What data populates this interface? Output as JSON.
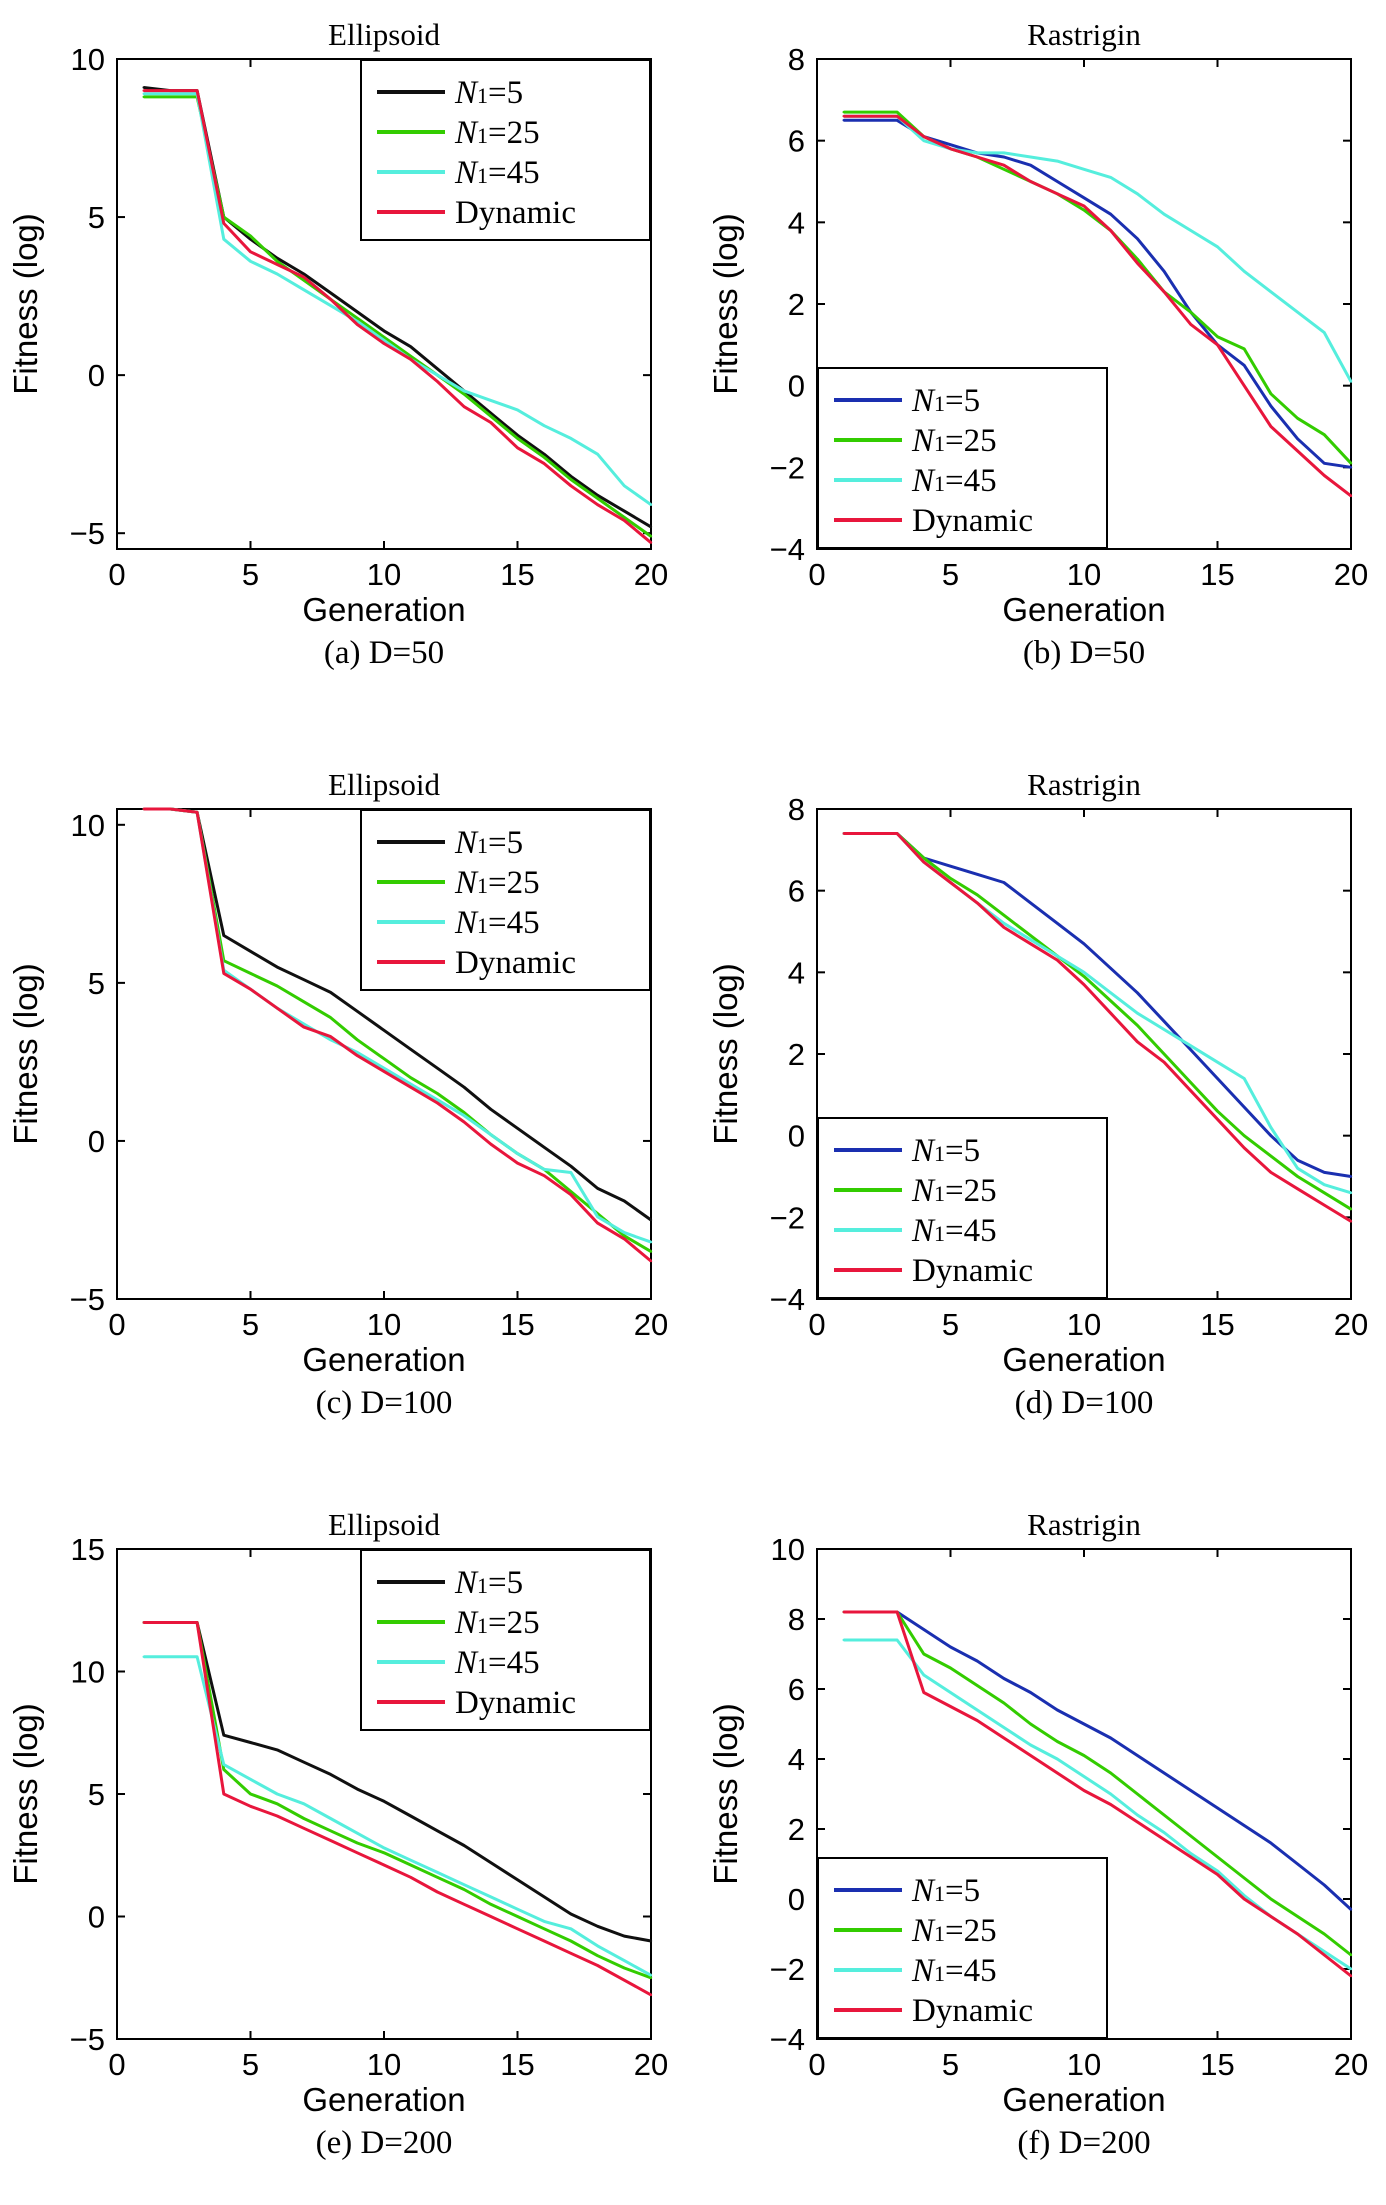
{
  "colors": {
    "N1=5 (Ellipsoid)": "#101010",
    "N1=5 (Rastrigin)": "#1a2fb0",
    "N1=25": "#33cc00",
    "N1=45": "#55eedd",
    "Dynamic": "#e8163c"
  },
  "chart_data": [
    {
      "type": "line",
      "title": "Ellipsoid",
      "caption": "(a) D=50",
      "xlabel": "Generation",
      "ylabel": "Fitness (log)",
      "xlim": [
        0,
        20
      ],
      "ylim": [
        -5.5,
        10
      ],
      "xticks": [
        0,
        5,
        10,
        15,
        20
      ],
      "yticks": [
        -5,
        0,
        5,
        10
      ],
      "legend": "top-right",
      "x": [
        1,
        2,
        3,
        4,
        5,
        6,
        7,
        8,
        9,
        10,
        11,
        12,
        13,
        14,
        15,
        16,
        17,
        18,
        19,
        20
      ],
      "series": [
        {
          "name": "N1=5",
          "color_key": "N1=5 (Ellipsoid)",
          "values": [
            9.1,
            9.0,
            9.0,
            5.0,
            4.3,
            3.7,
            3.2,
            2.6,
            2.0,
            1.4,
            0.9,
            0.2,
            -0.5,
            -1.2,
            -1.9,
            -2.5,
            -3.2,
            -3.8,
            -4.3,
            -4.8
          ]
        },
        {
          "name": "N1=25",
          "values": [
            8.8,
            8.8,
            8.8,
            5.0,
            4.4,
            3.6,
            3.0,
            2.4,
            1.8,
            1.2,
            0.6,
            0.0,
            -0.6,
            -1.3,
            -2.0,
            -2.6,
            -3.3,
            -3.9,
            -4.5,
            -5.1
          ]
        },
        {
          "name": "N1=45",
          "values": [
            8.9,
            8.9,
            8.9,
            4.3,
            3.6,
            3.2,
            2.7,
            2.2,
            1.7,
            1.1,
            0.5,
            0.0,
            -0.5,
            -0.8,
            -1.1,
            -1.6,
            -2.0,
            -2.5,
            -3.5,
            -4.1
          ]
        },
        {
          "name": "Dynamic",
          "values": [
            9.0,
            9.0,
            9.0,
            4.8,
            3.9,
            3.5,
            3.1,
            2.4,
            1.6,
            1.0,
            0.5,
            -0.2,
            -1.0,
            -1.5,
            -2.3,
            -2.8,
            -3.5,
            -4.1,
            -4.6,
            -5.3
          ]
        }
      ]
    },
    {
      "type": "line",
      "title": "Rastrigin",
      "caption": "(b) D=50",
      "xlabel": "Generation",
      "ylabel": "Fitness (log)",
      "xlim": [
        0,
        20
      ],
      "ylim": [
        -4,
        8
      ],
      "xticks": [
        0,
        5,
        10,
        15,
        20
      ],
      "yticks": [
        -4,
        -2,
        0,
        2,
        4,
        6,
        8
      ],
      "legend": "bottom-left",
      "x": [
        1,
        2,
        3,
        4,
        5,
        6,
        7,
        8,
        9,
        10,
        11,
        12,
        13,
        14,
        15,
        16,
        17,
        18,
        19,
        20
      ],
      "series": [
        {
          "name": "N1=5",
          "color_key": "N1=5 (Rastrigin)",
          "values": [
            6.5,
            6.5,
            6.5,
            6.1,
            5.9,
            5.7,
            5.6,
            5.4,
            5.0,
            4.6,
            4.2,
            3.6,
            2.8,
            1.8,
            1.0,
            0.5,
            -0.5,
            -1.3,
            -1.9,
            -2.0
          ]
        },
        {
          "name": "N1=25",
          "values": [
            6.7,
            6.7,
            6.7,
            6.1,
            5.8,
            5.6,
            5.3,
            5.0,
            4.7,
            4.3,
            3.8,
            3.1,
            2.3,
            1.8,
            1.2,
            0.9,
            -0.2,
            -0.8,
            -1.2,
            -1.9
          ]
        },
        {
          "name": "N1=45",
          "values": [
            6.6,
            6.6,
            6.6,
            6.0,
            5.8,
            5.7,
            5.7,
            5.6,
            5.5,
            5.3,
            5.1,
            4.7,
            4.2,
            3.8,
            3.4,
            2.8,
            2.3,
            1.8,
            1.3,
            0.1
          ]
        },
        {
          "name": "Dynamic",
          "values": [
            6.6,
            6.6,
            6.6,
            6.1,
            5.8,
            5.6,
            5.4,
            5.0,
            4.7,
            4.4,
            3.8,
            3.0,
            2.3,
            1.5,
            1.0,
            0.0,
            -1.0,
            -1.6,
            -2.2,
            -2.7
          ]
        }
      ]
    },
    {
      "type": "line",
      "title": "Ellipsoid",
      "caption": "(c) D=100",
      "xlabel": "Generation",
      "ylabel": "Fitness (log)",
      "xlim": [
        0,
        20
      ],
      "ylim": [
        -5,
        10.5
      ],
      "xticks": [
        0,
        5,
        10,
        15,
        20
      ],
      "yticks": [
        -5,
        0,
        5,
        10
      ],
      "legend": "top-right",
      "x": [
        1,
        2,
        3,
        4,
        5,
        6,
        7,
        8,
        9,
        10,
        11,
        12,
        13,
        14,
        15,
        16,
        17,
        18,
        19,
        20
      ],
      "series": [
        {
          "name": "N1=5",
          "color_key": "N1=5 (Ellipsoid)",
          "values": [
            10.5,
            10.5,
            10.4,
            6.5,
            6.0,
            5.5,
            5.1,
            4.7,
            4.1,
            3.5,
            2.9,
            2.3,
            1.7,
            1.0,
            0.4,
            -0.2,
            -0.8,
            -1.5,
            -1.9,
            -2.5
          ]
        },
        {
          "name": "N1=25",
          "values": [
            10.5,
            10.5,
            10.4,
            5.7,
            5.3,
            4.9,
            4.4,
            3.9,
            3.2,
            2.6,
            2.0,
            1.5,
            0.9,
            0.2,
            -0.4,
            -0.9,
            -1.6,
            -2.3,
            -3.0,
            -3.5
          ]
        },
        {
          "name": "N1=45",
          "values": [
            10.5,
            10.5,
            10.4,
            5.4,
            4.8,
            4.2,
            3.7,
            3.2,
            2.8,
            2.3,
            1.8,
            1.3,
            0.8,
            0.2,
            -0.4,
            -0.9,
            -1.0,
            -2.4,
            -2.9,
            -3.2
          ]
        },
        {
          "name": "Dynamic",
          "values": [
            10.5,
            10.5,
            10.4,
            5.3,
            4.8,
            4.2,
            3.6,
            3.3,
            2.7,
            2.2,
            1.7,
            1.2,
            0.6,
            -0.1,
            -0.7,
            -1.1,
            -1.7,
            -2.6,
            -3.1,
            -3.8
          ]
        }
      ]
    },
    {
      "type": "line",
      "title": "Rastrigin",
      "caption": "(d) D=100",
      "xlabel": "Generation",
      "ylabel": "Fitness (log)",
      "xlim": [
        0,
        20
      ],
      "ylim": [
        -4,
        8
      ],
      "xticks": [
        0,
        5,
        10,
        15,
        20
      ],
      "yticks": [
        -4,
        -2,
        0,
        2,
        4,
        6,
        8
      ],
      "legend": "bottom-left",
      "x": [
        1,
        2,
        3,
        4,
        5,
        6,
        7,
        8,
        9,
        10,
        11,
        12,
        13,
        14,
        15,
        16,
        17,
        18,
        19,
        20
      ],
      "series": [
        {
          "name": "N1=5",
          "color_key": "N1=5 (Rastrigin)",
          "values": [
            7.4,
            7.4,
            7.4,
            6.8,
            6.6,
            6.4,
            6.2,
            5.7,
            5.2,
            4.7,
            4.1,
            3.5,
            2.8,
            2.1,
            1.4,
            0.7,
            0.0,
            -0.6,
            -0.9,
            -1.0
          ]
        },
        {
          "name": "N1=25",
          "values": [
            7.4,
            7.4,
            7.4,
            6.8,
            6.3,
            5.9,
            5.4,
            4.9,
            4.4,
            3.9,
            3.3,
            2.7,
            2.0,
            1.3,
            0.6,
            0.0,
            -0.5,
            -1.0,
            -1.4,
            -1.8
          ]
        },
        {
          "name": "N1=45",
          "values": [
            7.4,
            7.4,
            7.4,
            6.7,
            6.2,
            5.7,
            5.2,
            4.8,
            4.4,
            4.0,
            3.5,
            3.0,
            2.6,
            2.2,
            1.8,
            1.4,
            0.2,
            -0.8,
            -1.2,
            -1.4
          ]
        },
        {
          "name": "Dynamic",
          "values": [
            7.4,
            7.4,
            7.4,
            6.7,
            6.2,
            5.7,
            5.1,
            4.7,
            4.3,
            3.7,
            3.0,
            2.3,
            1.8,
            1.1,
            0.4,
            -0.3,
            -0.9,
            -1.3,
            -1.7,
            -2.1
          ]
        }
      ]
    },
    {
      "type": "line",
      "title": "Ellipsoid",
      "caption": "(e) D=200",
      "xlabel": "Generation",
      "ylabel": "Fitness (log)",
      "xlim": [
        0,
        20
      ],
      "ylim": [
        -5,
        15
      ],
      "xticks": [
        0,
        5,
        10,
        15,
        20
      ],
      "yticks": [
        -5,
        0,
        5,
        10,
        15
      ],
      "legend": "top-right",
      "x": [
        1,
        2,
        3,
        4,
        5,
        6,
        7,
        8,
        9,
        10,
        11,
        12,
        13,
        14,
        15,
        16,
        17,
        18,
        19,
        20
      ],
      "series": [
        {
          "name": "N1=5",
          "color_key": "N1=5 (Ellipsoid)",
          "values": [
            12.0,
            12.0,
            12.0,
            7.4,
            7.1,
            6.8,
            6.3,
            5.8,
            5.2,
            4.7,
            4.1,
            3.5,
            2.9,
            2.2,
            1.5,
            0.8,
            0.1,
            -0.4,
            -0.8,
            -1.0
          ]
        },
        {
          "name": "N1=25",
          "values": [
            12.0,
            12.0,
            12.0,
            6.0,
            5.0,
            4.6,
            4.0,
            3.5,
            3.0,
            2.6,
            2.1,
            1.6,
            1.1,
            0.5,
            0.0,
            -0.5,
            -1.0,
            -1.6,
            -2.1,
            -2.5
          ]
        },
        {
          "name": "N1=45",
          "values": [
            10.6,
            10.6,
            10.6,
            6.2,
            5.6,
            5.0,
            4.6,
            4.0,
            3.4,
            2.8,
            2.3,
            1.8,
            1.3,
            0.8,
            0.3,
            -0.2,
            -0.5,
            -1.2,
            -1.8,
            -2.4
          ]
        },
        {
          "name": "Dynamic",
          "values": [
            12.0,
            12.0,
            12.0,
            5.0,
            4.5,
            4.1,
            3.6,
            3.1,
            2.6,
            2.1,
            1.6,
            1.0,
            0.5,
            0.0,
            -0.5,
            -1.0,
            -1.5,
            -2.0,
            -2.6,
            -3.2
          ]
        }
      ]
    },
    {
      "type": "line",
      "title": "Rastrigin",
      "caption": "(f) D=200",
      "xlabel": "Generation",
      "ylabel": "Fitness (log)",
      "xlim": [
        0,
        20
      ],
      "ylim": [
        -4,
        10
      ],
      "xticks": [
        0,
        5,
        10,
        15,
        20
      ],
      "yticks": [
        -4,
        -2,
        0,
        2,
        4,
        6,
        8,
        10
      ],
      "legend": "bottom-left",
      "x": [
        1,
        2,
        3,
        4,
        5,
        6,
        7,
        8,
        9,
        10,
        11,
        12,
        13,
        14,
        15,
        16,
        17,
        18,
        19,
        20
      ],
      "series": [
        {
          "name": "N1=5",
          "color_key": "N1=5 (Rastrigin)",
          "values": [
            8.2,
            8.2,
            8.2,
            7.7,
            7.2,
            6.8,
            6.3,
            5.9,
            5.4,
            5.0,
            4.6,
            4.1,
            3.6,
            3.1,
            2.6,
            2.1,
            1.6,
            1.0,
            0.4,
            -0.3
          ]
        },
        {
          "name": "N1=25",
          "values": [
            8.2,
            8.2,
            8.2,
            7.0,
            6.6,
            6.1,
            5.6,
            5.0,
            4.5,
            4.1,
            3.6,
            3.0,
            2.4,
            1.8,
            1.2,
            0.6,
            0.0,
            -0.5,
            -1.0,
            -1.6
          ]
        },
        {
          "name": "N1=45",
          "values": [
            7.4,
            7.4,
            7.4,
            6.4,
            5.9,
            5.4,
            4.9,
            4.4,
            4.0,
            3.5,
            3.0,
            2.4,
            1.9,
            1.3,
            0.8,
            0.1,
            -0.5,
            -1.0,
            -1.5,
            -2.0
          ]
        },
        {
          "name": "Dynamic",
          "values": [
            8.2,
            8.2,
            8.2,
            5.9,
            5.5,
            5.1,
            4.6,
            4.1,
            3.6,
            3.1,
            2.7,
            2.2,
            1.7,
            1.2,
            0.7,
            0.0,
            -0.5,
            -1.0,
            -1.6,
            -2.2
          ]
        }
      ]
    }
  ]
}
